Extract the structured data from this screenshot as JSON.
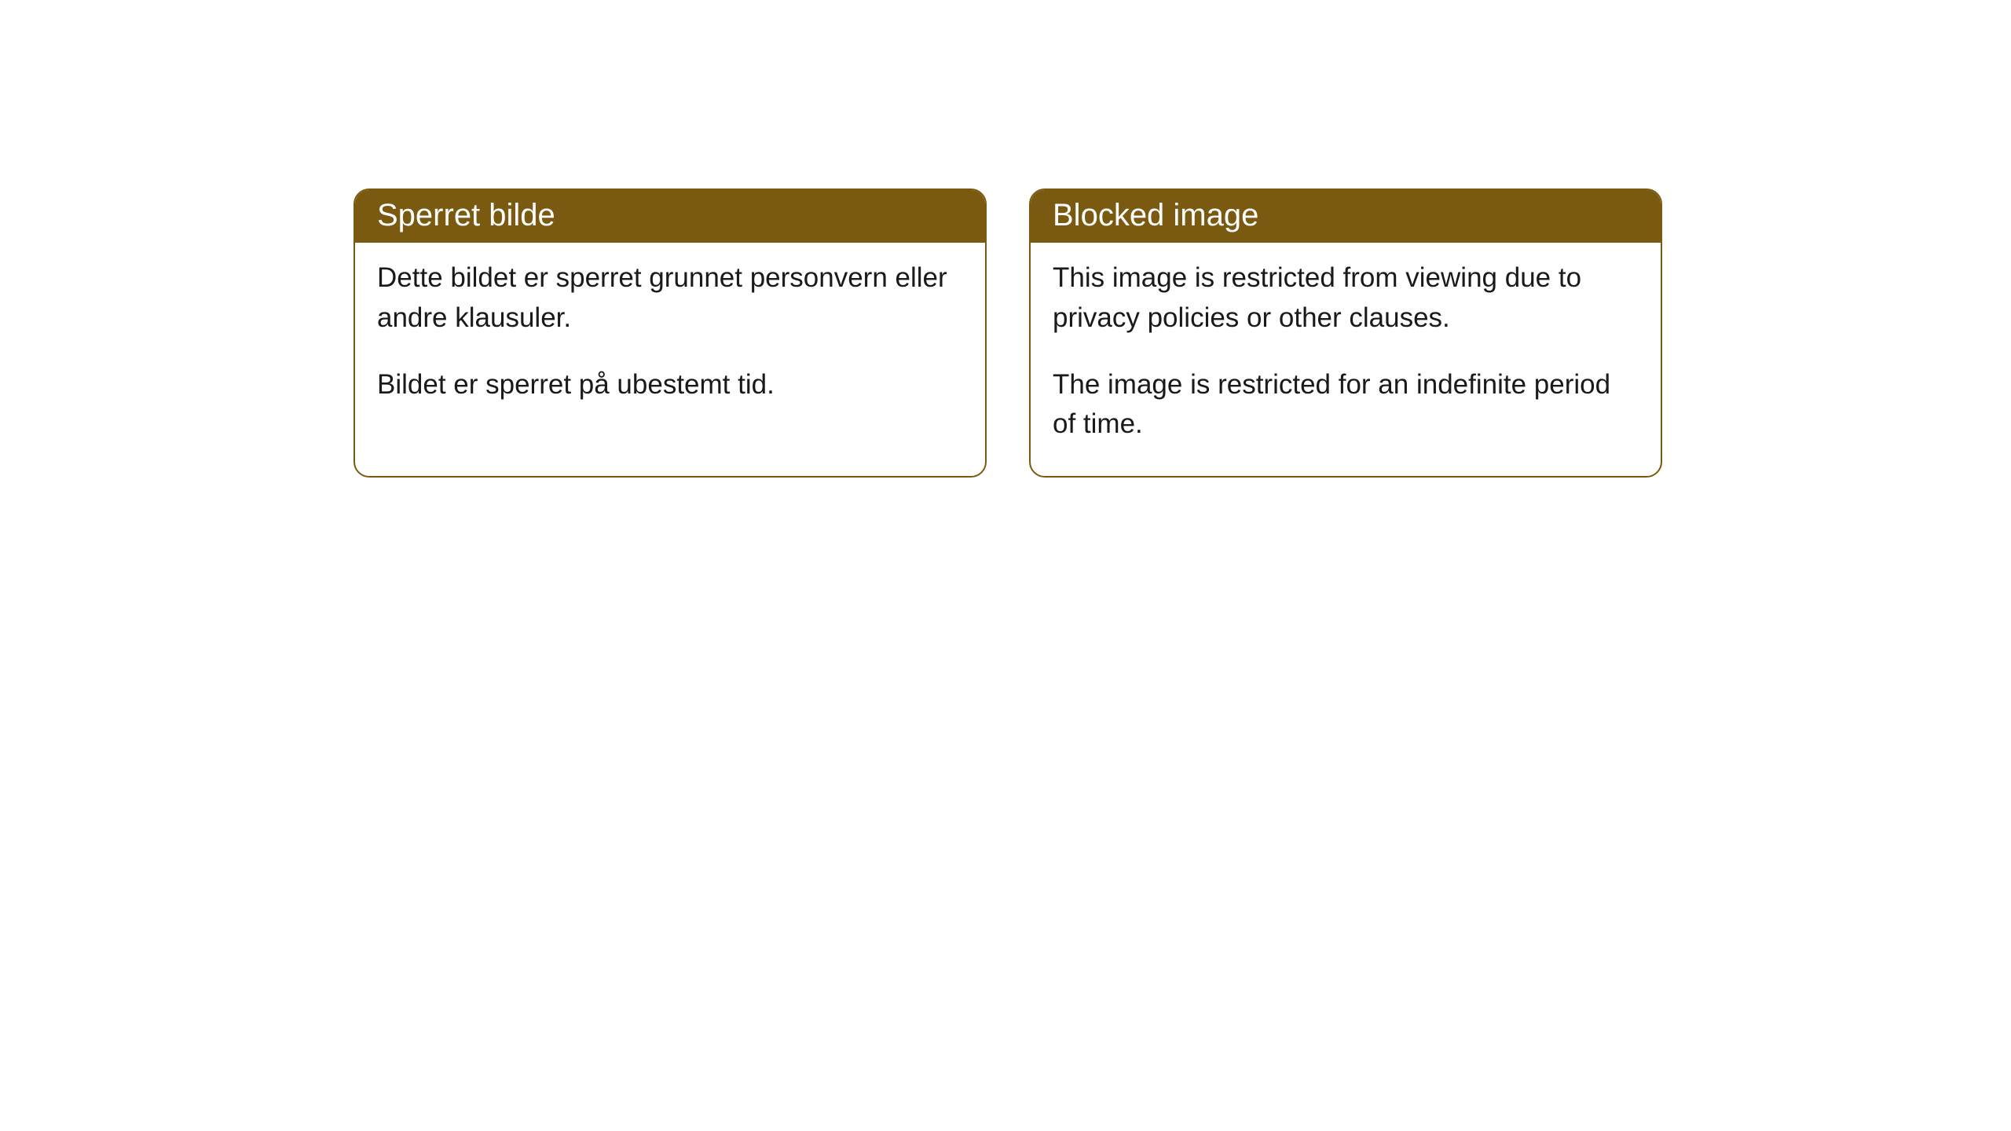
{
  "cards": [
    {
      "title": "Sperret bilde",
      "paragraph1": "Dette bildet er sperret grunnet personvern eller andre klausuler.",
      "paragraph2": "Bildet er sperret på ubestemt tid."
    },
    {
      "title": "Blocked image",
      "paragraph1": "This image is restricted from viewing due to privacy policies or other clauses.",
      "paragraph2": "The image is restricted for an indefinite period of time."
    }
  ],
  "styling": {
    "header_background_color": "#7a5a10",
    "header_text_color": "#ffffff",
    "border_color": "#7a5a10",
    "body_background_color": "#ffffff",
    "body_text_color": "#1a1a1a",
    "border_radius": 20,
    "title_fontsize": 40,
    "body_fontsize": 35
  }
}
